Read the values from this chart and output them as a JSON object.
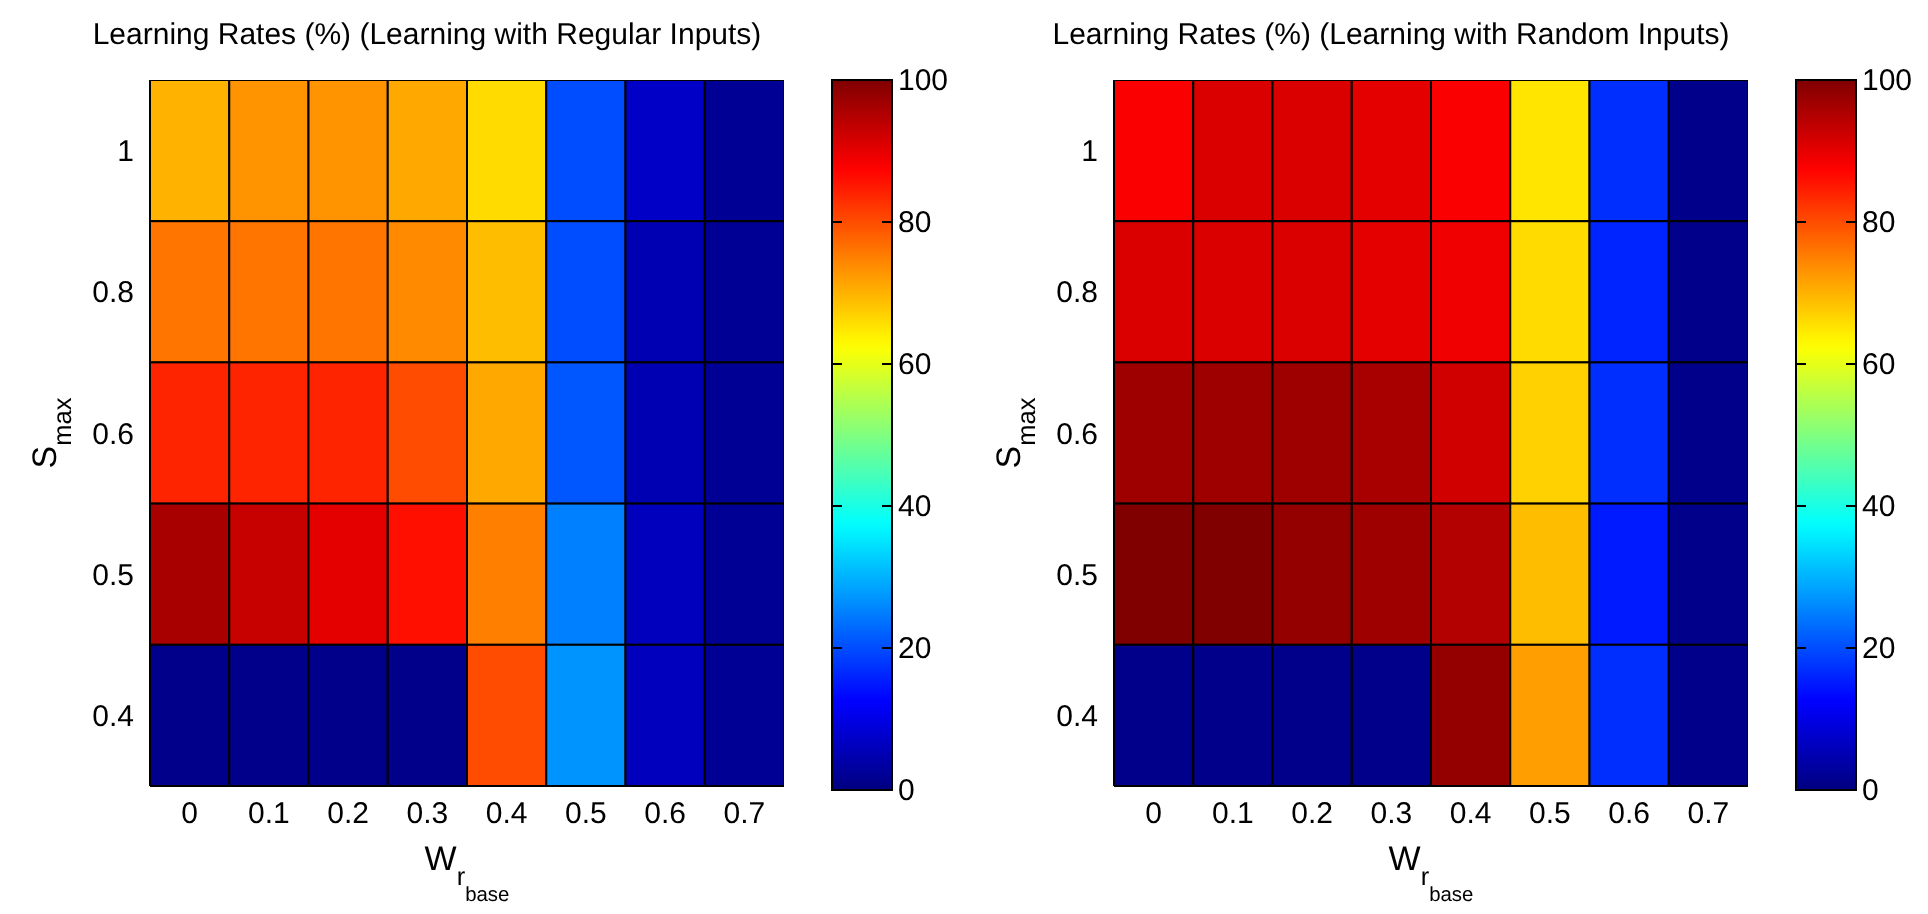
{
  "chart_data": [
    {
      "type": "heatmap",
      "title": "Learning Rates (%) (Learning with Regular Inputs)",
      "xlabel": "W$_{r}$$_{base}$",
      "ylabel": "S$_{max}$",
      "categories": [
        "0",
        "0.1",
        "0.2",
        "0.3",
        "0.4",
        "0.5",
        "0.6",
        "0.7"
      ],
      "y_categories": [
        "1",
        "0.8",
        "0.6",
        "0.5",
        "0.4"
      ],
      "cells": [
        [
          70,
          73,
          73,
          71,
          66,
          20,
          7,
          2
        ],
        [
          76,
          76,
          76,
          74,
          69,
          20,
          5,
          2
        ],
        [
          84,
          84,
          84,
          80,
          71,
          21,
          5,
          2
        ],
        [
          96,
          93,
          90,
          86,
          75,
          25,
          6,
          2
        ],
        [
          1,
          1,
          1,
          1,
          80,
          27,
          6,
          2
        ]
      ],
      "clim": [
        0,
        100
      ],
      "cticks": [
        0,
        20,
        40,
        60,
        80,
        100
      ]
    },
    {
      "type": "heatmap",
      "title": "Learning Rates (%) (Learning with Random Inputs)",
      "xlabel": "W$_{r}$$_{base}$",
      "ylabel": "S$_{max}$",
      "categories": [
        "0",
        "0.1",
        "0.2",
        "0.3",
        "0.4",
        "0.5",
        "0.6",
        "0.7"
      ],
      "y_categories": [
        "1",
        "0.8",
        "0.6",
        "0.5",
        "0.4"
      ],
      "cells": [
        [
          88,
          91,
          91,
          90,
          88,
          65,
          17,
          1
        ],
        [
          91,
          91,
          91,
          90,
          89,
          66,
          16,
          1
        ],
        [
          97,
          97,
          97,
          96,
          92,
          67,
          17,
          1
        ],
        [
          100,
          100,
          98,
          97,
          95,
          69,
          15,
          1
        ],
        [
          1,
          1,
          1,
          1,
          98,
          72,
          17,
          1
        ]
      ],
      "clim": [
        0,
        100
      ],
      "cticks": [
        0,
        20,
        40,
        60,
        80,
        100
      ]
    }
  ]
}
